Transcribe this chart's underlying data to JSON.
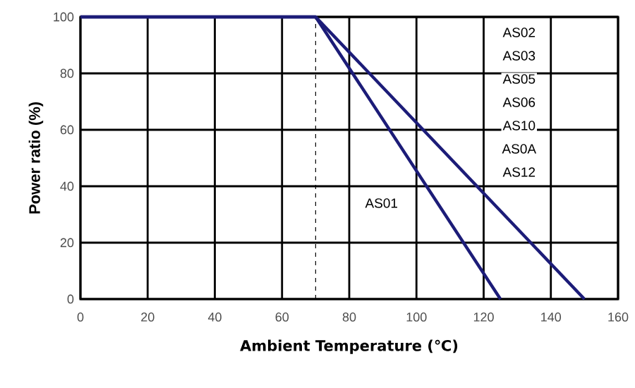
{
  "chart_data": {
    "type": "line",
    "xlabel": "Ambient Temperature (℃)",
    "ylabel": "Power ratio (%)",
    "series": [
      {
        "color": "#1c1c78",
        "x": [
          0,
          70,
          125
        ],
        "values": [
          100,
          100,
          0
        ]
      },
      {
        "color": "#1c1c78",
        "x": [
          0,
          70,
          150
        ],
        "values": [
          100,
          100,
          0
        ]
      }
    ],
    "xlim": [
      0,
      160
    ],
    "ylim": [
      0,
      100
    ],
    "xticks": [
      0,
      20,
      40,
      60,
      80,
      100,
      120,
      140,
      160
    ],
    "yticks": [
      0,
      20,
      40,
      60,
      80,
      100
    ],
    "grid": true,
    "marker": "none",
    "line_style": "solid",
    "ref_lines": [
      {
        "axis": "x",
        "value": 70,
        "line_style": "dashed"
      }
    ],
    "annotations": [
      "AS01",
      "AS02",
      "AS03",
      "AS05",
      "AS06",
      "AS10",
      "AS0A",
      "AS12"
    ]
  }
}
